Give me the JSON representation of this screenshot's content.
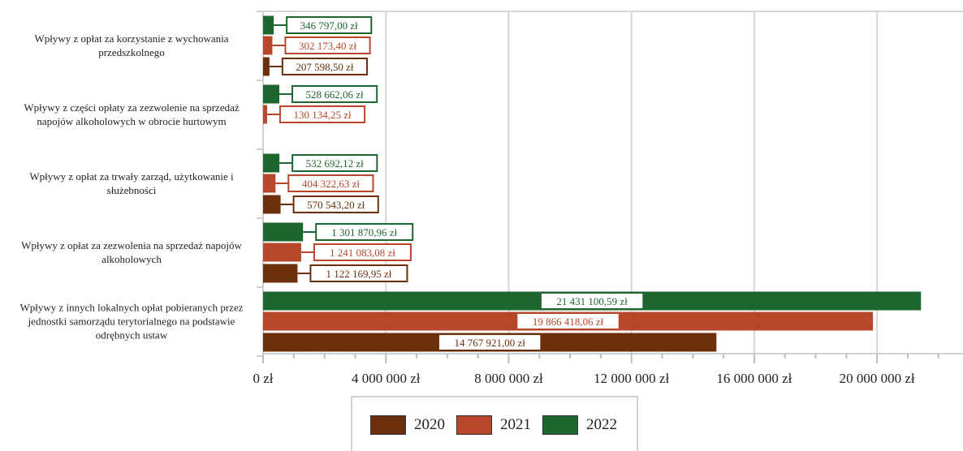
{
  "chart_data": {
    "type": "bar",
    "orientation": "horizontal",
    "categories": [
      "Wpływy z opłat za korzystanie z wychowania przedszkolnego",
      "Wpływy z części opłaty za zezwolenie na sprzedaż napojów alkoholowych w obrocie hurtowym",
      "Wpływy z opłat za trwały zarząd, użytkowanie i służebności",
      "Wpływy z opłat za zezwolenia na sprzedaż napojów alkoholowych",
      "Wpływy z innych lokalnych opłat pobieranych przez jednostki samorządu terytorialnego na podstawie odrębnych ustaw"
    ],
    "category_lines": [
      [
        "Wpływy z opłat za korzystanie z wychowania",
        "przedszkolnego"
      ],
      [
        "Wpływy z części opłaty za zezwolenie na sprzedaż",
        "napojów alkoholowych w obrocie hurtowym"
      ],
      [
        "Wpływy z opłat za trwały zarząd, użytkowanie i",
        "służebności"
      ],
      [
        "Wpływy z opłat za zezwolenia na sprzedaż napojów",
        "alkoholowych"
      ],
      [
        "Wpływy z innych lokalnych opłat pobieranych przez",
        "jednostki samorządu terytorialnego na podstawie",
        "odrębnych ustaw"
      ]
    ],
    "series": [
      {
        "name": "2022",
        "color": "#1e6630",
        "values": [
          346797.0,
          528662.06,
          532692.12,
          1301870.96,
          21431100.59
        ],
        "labels": [
          "346 797,00 zł",
          "528 662,06 zł",
          "532 692,12 zł",
          "1 301 870,96 zł",
          "21 431 100,59 zł"
        ]
      },
      {
        "name": "2021",
        "color": "#b8462b",
        "values": [
          302173.4,
          130134.25,
          404322.63,
          1241083.08,
          19866418.06
        ],
        "labels": [
          "302 173,40 zł",
          "130 134,25 zł",
          "404 322,63 zł",
          "1 241 083,08 zł",
          "19 866 418,06 zł"
        ]
      },
      {
        "name": "2020",
        "color": "#6b2f0c",
        "values": [
          207598.5,
          null,
          570543.2,
          1122169.95,
          14767921.0
        ],
        "labels": [
          "207 598,50 zł",
          null,
          "570 543,20 zł",
          "1 122 169,95 zł",
          "14 767 921,00 zł"
        ]
      }
    ],
    "xlim": [
      0,
      22800000
    ],
    "xticks": [
      0,
      4000000,
      8000000,
      12000000,
      16000000,
      20000000
    ],
    "xtick_labels": [
      "0 zł",
      "4 000 000 zł",
      "8 000 000 zł",
      "12 000 000 zł",
      "16 000 000 zł",
      "20 000 000 zł"
    ],
    "grid": true,
    "legend": {
      "position": "bottom",
      "order": [
        "2020",
        "2021",
        "2022"
      ]
    },
    "title": "",
    "xlabel": "",
    "ylabel": ""
  }
}
